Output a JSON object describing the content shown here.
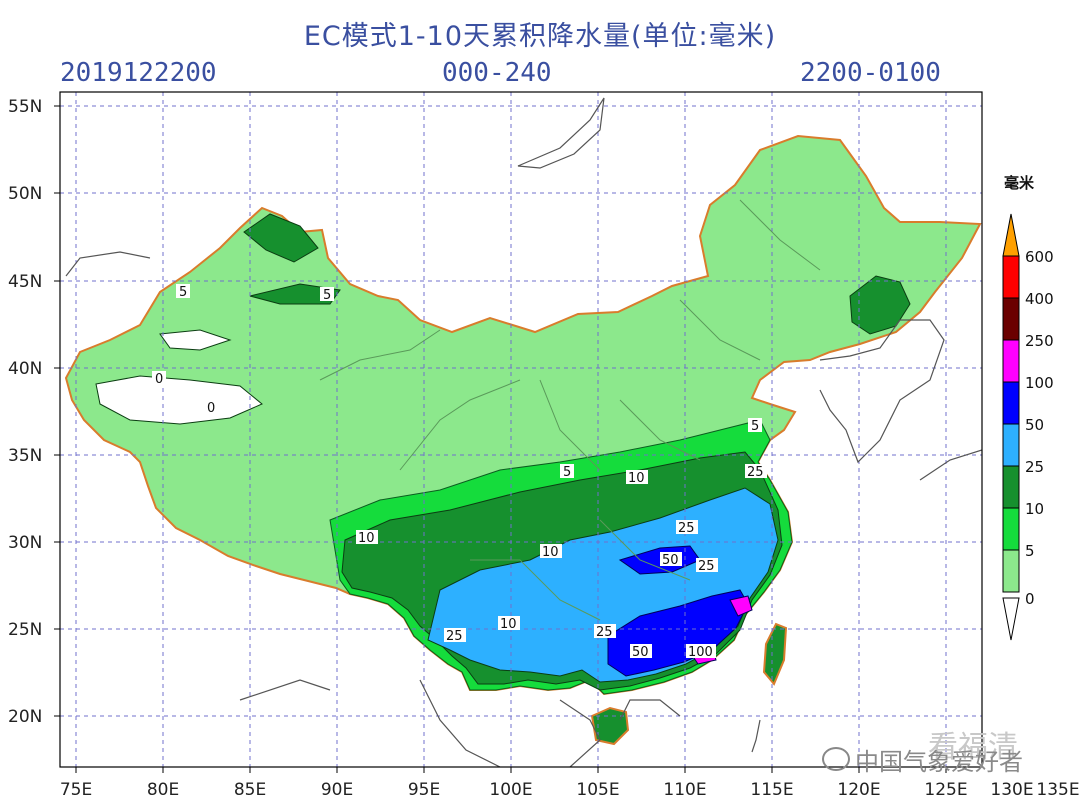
{
  "header": {
    "title": "EC模式1-10天累积降水量(单位:毫米)",
    "init_time": "2019122200",
    "forecast_hours": "000-240",
    "valid_range": "2200-0100"
  },
  "axes": {
    "lat_labels": [
      "55N",
      "50N",
      "45N",
      "40N",
      "35N",
      "30N",
      "25N",
      "20N"
    ],
    "lon_labels": [
      "75E",
      "80E",
      "85E",
      "90E",
      "95E",
      "100E",
      "105E",
      "110E",
      "115E",
      "120E",
      "125E",
      "130E",
      "135E"
    ]
  },
  "legend": {
    "unit": "毫米",
    "levels": [
      {
        "label": "600",
        "color": "#ff0000"
      },
      {
        "label": "400",
        "color": "#6b0000"
      },
      {
        "label": "250",
        "color": "#ff00ff"
      },
      {
        "label": "100",
        "color": "#0000ff"
      },
      {
        "label": "50",
        "color": "#2db0ff"
      },
      {
        "label": "25",
        "color": "#16902e"
      },
      {
        "label": "10",
        "color": "#15dc3c"
      },
      {
        "label": "5",
        "color": "#8ce88c"
      },
      {
        "label": "0",
        "color": "#ffffff"
      }
    ],
    "top_arrow_color": "#ffa000"
  },
  "contour_labels": [
    "0",
    "5",
    "10",
    "25",
    "50",
    "100"
  ],
  "watermark": {
    "text": "中国气象爱好者",
    "site": "看福清"
  }
}
